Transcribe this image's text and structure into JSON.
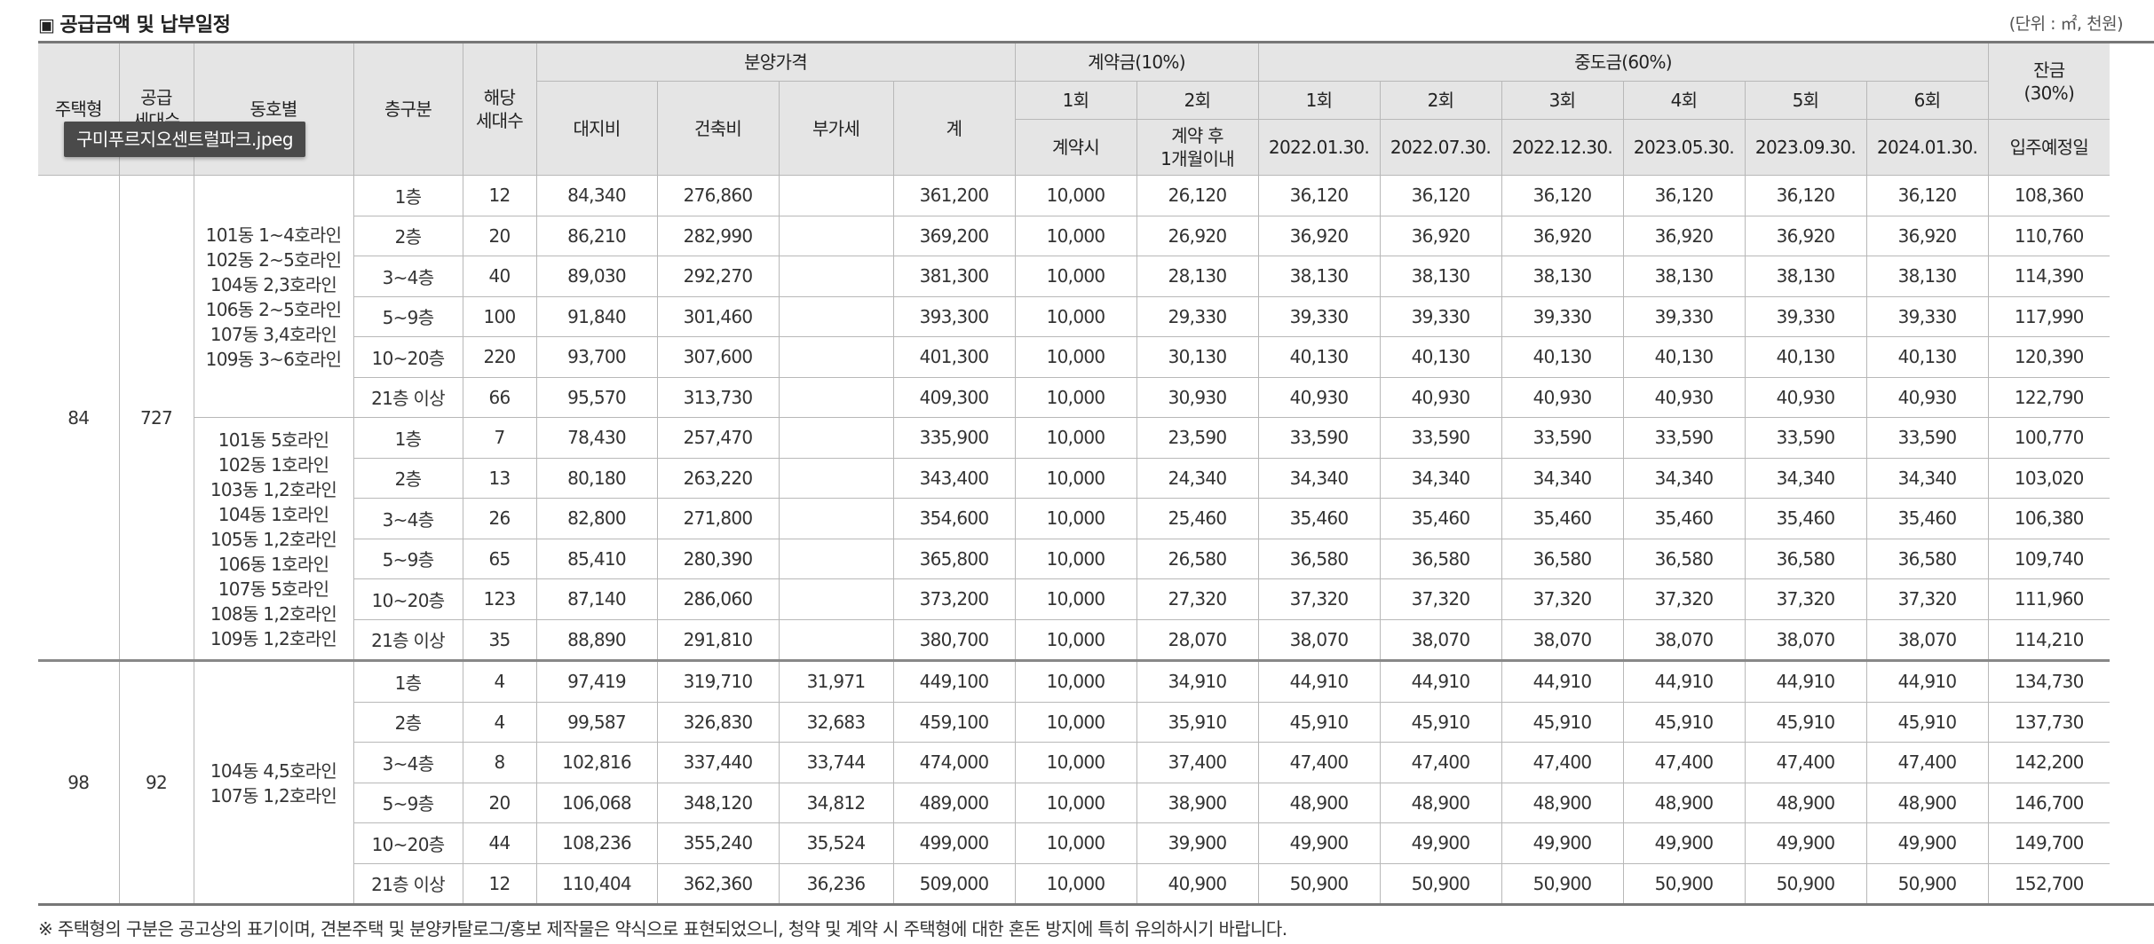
{
  "title": "공급금액 및 납부일정",
  "unit": "(단위 : ㎡, 천원)",
  "tooltip": "구미푸르지오센트럴파크.jpeg",
  "headers": {
    "house_type": "주택형",
    "supply_units_1": "공급",
    "supply_units_2": "세대수",
    "dong": "동호별",
    "floor": "층구분",
    "units_1": "해당",
    "units_2": "세대수",
    "price_group": "분양가격",
    "land": "대지비",
    "building": "건축비",
    "vat": "부가세",
    "total": "계",
    "contract_group": "계약금(10%)",
    "c1": "1회",
    "c2": "2회",
    "c1_when": "계약시",
    "c2_when_1": "계약 후",
    "c2_when_2": "1개월이내",
    "middle_group": "중도금(60%)",
    "m1": "1회",
    "m2": "2회",
    "m3": "3회",
    "m4": "4회",
    "m5": "5회",
    "m6": "6회",
    "m1_date": "2022.01.30.",
    "m2_date": "2022.07.30.",
    "m3_date": "2022.12.30.",
    "m4_date": "2023.05.30.",
    "m5_date": "2023.09.30.",
    "m6_date": "2024.01.30.",
    "balance_1": "잔금",
    "balance_2": "(30%)",
    "balance_when": "입주예정일"
  },
  "groups": [
    {
      "house_type": "84",
      "supply_units": "727",
      "subgroups": [
        {
          "dong_lines": [
            "101동 1~4호라인",
            "102동 2~5호라인",
            "104동 2,3호라인",
            "106동 2~5호라인",
            "107동 3,4호라인",
            "109동 3~6호라인"
          ],
          "rows": [
            [
              "1층",
              "12",
              "84,340",
              "276,860",
              "",
              "361,200",
              "10,000",
              "26,120",
              "36,120",
              "36,120",
              "36,120",
              "36,120",
              "36,120",
              "36,120",
              "108,360"
            ],
            [
              "2층",
              "20",
              "86,210",
              "282,990",
              "",
              "369,200",
              "10,000",
              "26,920",
              "36,920",
              "36,920",
              "36,920",
              "36,920",
              "36,920",
              "36,920",
              "110,760"
            ],
            [
              "3~4층",
              "40",
              "89,030",
              "292,270",
              "",
              "381,300",
              "10,000",
              "28,130",
              "38,130",
              "38,130",
              "38,130",
              "38,130",
              "38,130",
              "38,130",
              "114,390"
            ],
            [
              "5~9층",
              "100",
              "91,840",
              "301,460",
              "",
              "393,300",
              "10,000",
              "29,330",
              "39,330",
              "39,330",
              "39,330",
              "39,330",
              "39,330",
              "39,330",
              "117,990"
            ],
            [
              "10~20층",
              "220",
              "93,700",
              "307,600",
              "",
              "401,300",
              "10,000",
              "30,130",
              "40,130",
              "40,130",
              "40,130",
              "40,130",
              "40,130",
              "40,130",
              "120,390"
            ],
            [
              "21층 이상",
              "66",
              "95,570",
              "313,730",
              "",
              "409,300",
              "10,000",
              "30,930",
              "40,930",
              "40,930",
              "40,930",
              "40,930",
              "40,930",
              "40,930",
              "122,790"
            ]
          ]
        },
        {
          "dong_lines": [
            "101동 5호라인",
            "102동 1호라인",
            "103동 1,2호라인",
            "104동 1호라인",
            "105동 1,2호라인",
            "106동 1호라인",
            "107동 5호라인",
            "108동 1,2호라인",
            "109동 1,2호라인"
          ],
          "rows": [
            [
              "1층",
              "7",
              "78,430",
              "257,470",
              "",
              "335,900",
              "10,000",
              "23,590",
              "33,590",
              "33,590",
              "33,590",
              "33,590",
              "33,590",
              "33,590",
              "100,770"
            ],
            [
              "2층",
              "13",
              "80,180",
              "263,220",
              "",
              "343,400",
              "10,000",
              "24,340",
              "34,340",
              "34,340",
              "34,340",
              "34,340",
              "34,340",
              "34,340",
              "103,020"
            ],
            [
              "3~4층",
              "26",
              "82,800",
              "271,800",
              "",
              "354,600",
              "10,000",
              "25,460",
              "35,460",
              "35,460",
              "35,460",
              "35,460",
              "35,460",
              "35,460",
              "106,380"
            ],
            [
              "5~9층",
              "65",
              "85,410",
              "280,390",
              "",
              "365,800",
              "10,000",
              "26,580",
              "36,580",
              "36,580",
              "36,580",
              "36,580",
              "36,580",
              "36,580",
              "109,740"
            ],
            [
              "10~20층",
              "123",
              "87,140",
              "286,060",
              "",
              "373,200",
              "10,000",
              "27,320",
              "37,320",
              "37,320",
              "37,320",
              "37,320",
              "37,320",
              "37,320",
              "111,960"
            ],
            [
              "21층 이상",
              "35",
              "88,890",
              "291,810",
              "",
              "380,700",
              "10,000",
              "28,070",
              "38,070",
              "38,070",
              "38,070",
              "38,070",
              "38,070",
              "38,070",
              "114,210"
            ]
          ]
        }
      ]
    },
    {
      "house_type": "98",
      "supply_units": "92",
      "subgroups": [
        {
          "dong_lines": [
            "104동 4,5호라인",
            "107동 1,2호라인"
          ],
          "rows": [
            [
              "1층",
              "4",
              "97,419",
              "319,710",
              "31,971",
              "449,100",
              "10,000",
              "34,910",
              "44,910",
              "44,910",
              "44,910",
              "44,910",
              "44,910",
              "44,910",
              "134,730"
            ],
            [
              "2층",
              "4",
              "99,587",
              "326,830",
              "32,683",
              "459,100",
              "10,000",
              "35,910",
              "45,910",
              "45,910",
              "45,910",
              "45,910",
              "45,910",
              "45,910",
              "137,730"
            ],
            [
              "3~4층",
              "8",
              "102,816",
              "337,440",
              "33,744",
              "474,000",
              "10,000",
              "37,400",
              "47,400",
              "47,400",
              "47,400",
              "47,400",
              "47,400",
              "47,400",
              "142,200"
            ],
            [
              "5~9층",
              "20",
              "106,068",
              "348,120",
              "34,812",
              "489,000",
              "10,000",
              "38,900",
              "48,900",
              "48,900",
              "48,900",
              "48,900",
              "48,900",
              "48,900",
              "146,700"
            ],
            [
              "10~20층",
              "44",
              "108,236",
              "355,240",
              "35,524",
              "499,000",
              "10,000",
              "39,900",
              "49,900",
              "49,900",
              "49,900",
              "49,900",
              "49,900",
              "49,900",
              "149,700"
            ],
            [
              "21층 이상",
              "12",
              "110,404",
              "362,360",
              "36,236",
              "509,000",
              "10,000",
              "40,900",
              "50,900",
              "50,900",
              "50,900",
              "50,900",
              "50,900",
              "50,900",
              "152,700"
            ]
          ]
        }
      ]
    }
  ],
  "footnote": "※ 주택형의 구분은 공고상의 표기이며, 견본주택 및 분양카탈로그/홍보 제작물은 약식으로 표현되었으니, 청약 및 계약 시 주택형에 대한 혼돈 방지에 특히 유의하시기 바랍니다."
}
